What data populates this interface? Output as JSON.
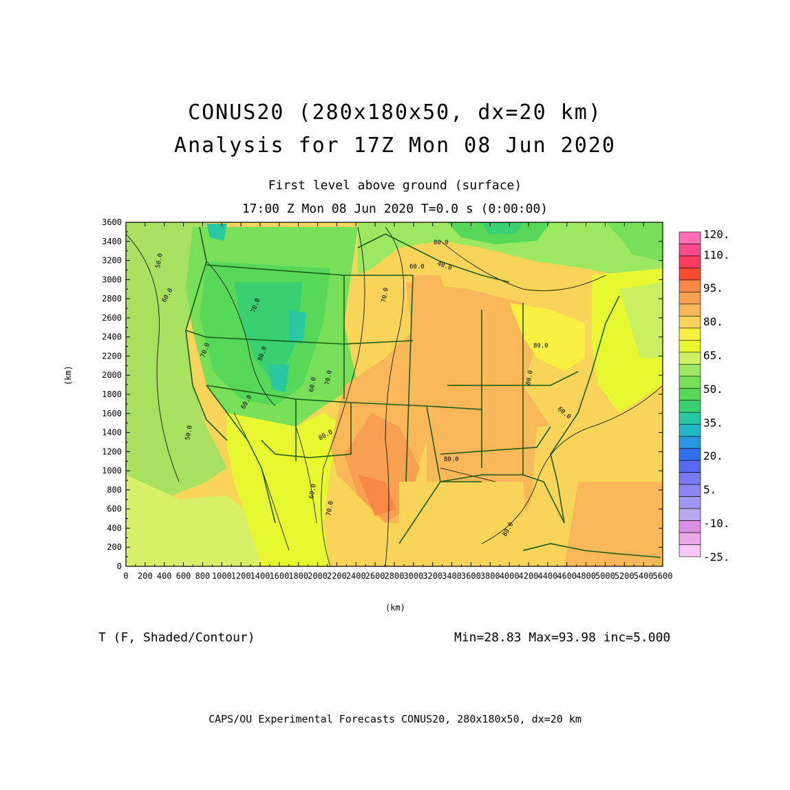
{
  "header": {
    "title_line1": "CONUS20 (280x180x50, dx=20 km)",
    "title_line2": "Analysis for 17Z Mon 08 Jun 2020",
    "subtitle_line1": "First level above ground (surface)",
    "subtitle_line2": "17:00 Z Mon 08 Jun 2020    T=0.0 s (0:00:00)"
  },
  "axes": {
    "x_label": "(km)",
    "y_label": "(km)",
    "x_ticks": [
      "0",
      "200",
      "400",
      "600",
      "800",
      "1000",
      "1200",
      "1400",
      "1600",
      "1800",
      "2000",
      "2200",
      "2400",
      "2600",
      "2800",
      "3000",
      "3200",
      "3400",
      "3600",
      "3800",
      "4000",
      "4200",
      "4400",
      "4600",
      "4800",
      "5000",
      "5200",
      "5400",
      "5600"
    ],
    "y_ticks": [
      "0",
      "200",
      "400",
      "600",
      "800",
      "1000",
      "1200",
      "1400",
      "1600",
      "1800",
      "2000",
      "2200",
      "2400",
      "2600",
      "2800",
      "3000",
      "3200",
      "3400",
      "3600"
    ],
    "x_range": [
      0,
      5600
    ],
    "y_range": [
      0,
      3600
    ]
  },
  "colorbar": {
    "colors": [
      "#ff6eb4",
      "#ff4a8a",
      "#ff3a5a",
      "#ff4a30",
      "#f88848",
      "#f8a050",
      "#f8b858",
      "#f8d458",
      "#f8f040",
      "#e8f830",
      "#c8f060",
      "#9ce860",
      "#78e058",
      "#58d858",
      "#38d070",
      "#28c8a0",
      "#20b8c8",
      "#2898e0",
      "#3070f0",
      "#5868f0",
      "#7878f0",
      "#8888f0",
      "#a098f0",
      "#b8a8f0",
      "#d890e0",
      "#e8a8e8",
      "#f8c8f8"
    ],
    "labels": [
      "120.",
      "110.",
      "95.",
      "80.",
      "65.",
      "50.",
      "35.",
      "20.",
      "5.",
      "-10.",
      "-25."
    ]
  },
  "map": {
    "contour_labels": [
      "50.0",
      "60.0",
      "70.0",
      "80.0",
      "40.0",
      "60.0",
      "70.0",
      "80.0",
      "60.0",
      "70.0",
      "80.0",
      "50.0",
      "60.0",
      "70.0",
      "80.0",
      "60.0",
      "80.0",
      "80.0",
      "70.0",
      "60.0",
      "80.0"
    ]
  },
  "footer": {
    "variable": "T (F, Shaded/Contour)",
    "stats": "Min=28.83 Max=93.98 inc=5.000",
    "credit": "CAPS/OU Experimental Forecasts  CONUS20, 280x180x50, dx=20 km"
  }
}
